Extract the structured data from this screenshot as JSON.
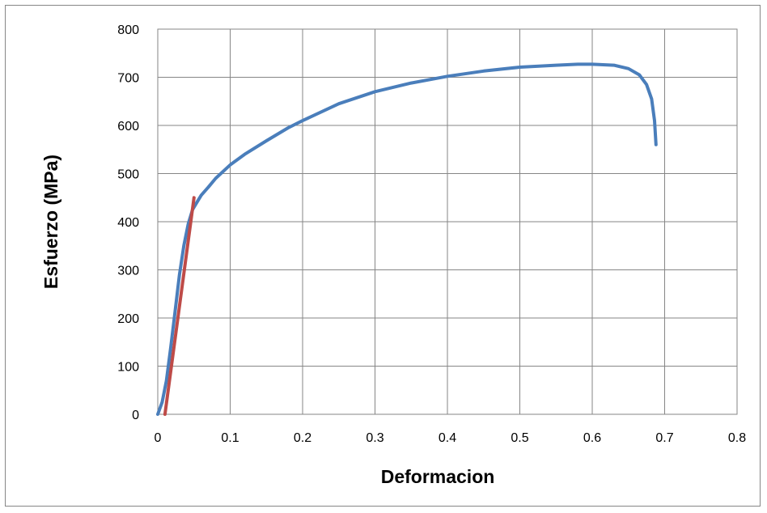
{
  "chart_data": {
    "type": "line",
    "title": "",
    "xlabel": "Deformacion",
    "ylabel": "Esfuerzo (MPa)",
    "xlim": [
      0,
      0.8
    ],
    "ylim": [
      0,
      800
    ],
    "x_ticks": [
      0,
      0.1,
      0.2,
      0.3,
      0.4,
      0.5,
      0.6,
      0.7,
      0.8
    ],
    "x_tick_labels": [
      "0",
      "0.1",
      "0.2",
      "0.3",
      "0.4",
      "0.5",
      "0.6",
      "0.7",
      "0.8"
    ],
    "y_ticks": [
      0,
      100,
      200,
      300,
      400,
      500,
      600,
      700,
      800
    ],
    "y_tick_labels": [
      "0",
      "100",
      "200",
      "300",
      "400",
      "500",
      "600",
      "700",
      "800"
    ],
    "grid": true,
    "legend": "none",
    "series": [
      {
        "color": "#4a7ebb",
        "x": [
          0,
          0.006,
          0.012,
          0.018,
          0.024,
          0.03,
          0.036,
          0.042,
          0.048,
          0.054,
          0.06,
          0.07,
          0.08,
          0.1,
          0.12,
          0.15,
          0.18,
          0.2,
          0.25,
          0.3,
          0.35,
          0.4,
          0.45,
          0.5,
          0.55,
          0.58,
          0.6,
          0.63,
          0.65,
          0.665,
          0.675,
          0.682,
          0.686,
          0.688
        ],
        "y": [
          0,
          25,
          70,
          140,
          215,
          290,
          350,
          395,
          425,
          440,
          455,
          472,
          490,
          518,
          540,
          568,
          595,
          610,
          645,
          670,
          688,
          702,
          713,
          721,
          725,
          727,
          727,
          725,
          718,
          705,
          685,
          655,
          610,
          560
        ]
      },
      {
        "color": "#be4b48",
        "x": [
          0.01,
          0.05
        ],
        "y": [
          0,
          450
        ]
      }
    ]
  }
}
